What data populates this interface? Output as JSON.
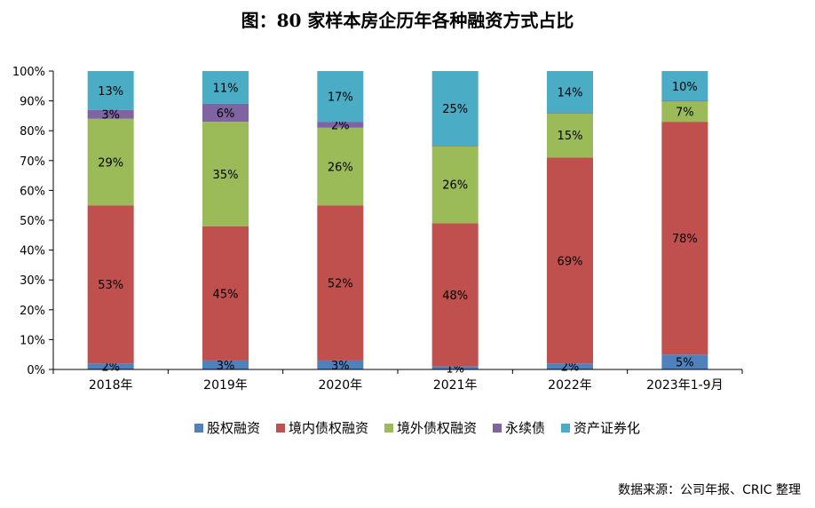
{
  "title": "图：80 家样本房企历年各种融资方式占比",
  "source": "数据来源：公司年报、CRIC 整理",
  "chart_data": {
    "type": "bar",
    "stacked": true,
    "percent": true,
    "categories": [
      "2018年",
      "2019年",
      "2020年",
      "2021年",
      "2022年",
      "2023年1-9月"
    ],
    "ylim": [
      0,
      100
    ],
    "yticks": [
      "0%",
      "10%",
      "20%",
      "30%",
      "40%",
      "50%",
      "60%",
      "70%",
      "80%",
      "90%",
      "100%"
    ],
    "grid": false,
    "legend_position": "bottom",
    "series": [
      {
        "name": "股权融资",
        "color": "#4f81bd",
        "values": [
          2,
          3,
          3,
          1,
          2,
          5
        ],
        "labels": [
          "2%",
          "3%",
          "3%",
          "1%",
          "2%",
          "5%"
        ]
      },
      {
        "name": "境内债权融资",
        "color": "#c0504d",
        "values": [
          53,
          45,
          52,
          48,
          69,
          78
        ],
        "labels": [
          "53%",
          "45%",
          "52%",
          "48%",
          "69%",
          "78%"
        ]
      },
      {
        "name": "境外债权融资",
        "color": "#9bbb59",
        "values": [
          29,
          35,
          26,
          26,
          15,
          7
        ],
        "labels": [
          "29%",
          "35%",
          "26%",
          "26%",
          "15%",
          "7%"
        ]
      },
      {
        "name": "永续债",
        "color": "#8064a2",
        "values": [
          3,
          6,
          2,
          0,
          0,
          0
        ],
        "labels": [
          "3%",
          "6%",
          "2%",
          "",
          "",
          ""
        ]
      },
      {
        "name": "资产证券化",
        "color": "#4bacc6",
        "values": [
          13,
          11,
          17,
          25,
          14,
          10
        ],
        "labels": [
          "13%",
          "11%",
          "17%",
          "25%",
          "14%",
          "10%"
        ]
      }
    ]
  }
}
